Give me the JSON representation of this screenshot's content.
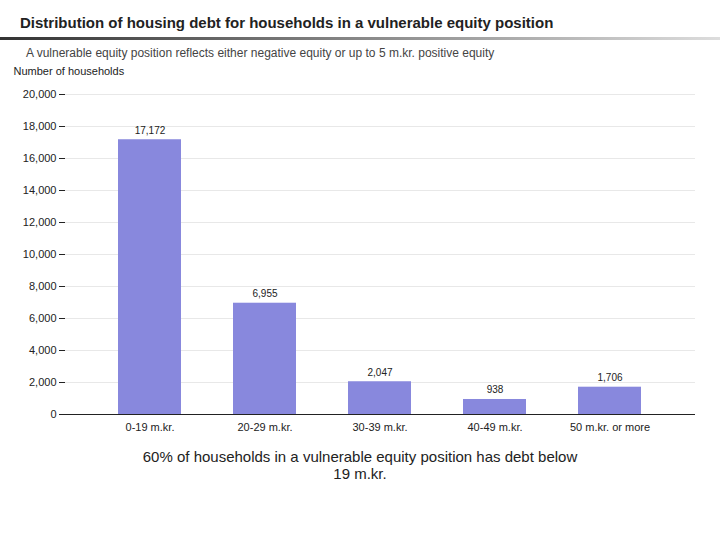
{
  "chart_data": {
    "type": "bar",
    "title": "Distribution of housing debt for households in a vulnerable equity position",
    "subtitle": "A vulnerable equity position reflects either negative equity or up to 5 m.kr. positive equity",
    "ylabel": "Number of households",
    "categories": [
      "0-19 m.kr.",
      "20-29 m.kr.",
      "30-39 m.kr.",
      "40-49 m.kr.",
      "50 m.kr. or more"
    ],
    "values": [
      17172,
      6955,
      2047,
      938,
      1706
    ],
    "data_labels": true,
    "value_labels": [
      "17,172",
      "6,955",
      "2,047",
      "938",
      "1,706"
    ],
    "color": "#8888dd",
    "ylim": [
      0,
      20000
    ],
    "yticks": [
      0,
      {
        "value": 2000,
        "label": "2,000"
      },
      {
        "value": 4000,
        "label": "4,000"
      },
      {
        "value": 6000,
        "label": "6,000"
      },
      {
        "value": 8000,
        "label": "8,000"
      },
      {
        "value": 10000,
        "label": "10,000"
      },
      {
        "value": 12000,
        "label": "12,000"
      },
      {
        "value": 14000,
        "label": "14,000"
      },
      {
        "value": 16000,
        "label": "16,000"
      },
      {
        "value": 18000,
        "label": "18,000"
      },
      {
        "value": 20000,
        "label": "20,000"
      }
    ],
    "grid": true,
    "annotation": "60% of households in a vulnerable equity position has debt below\n19 m.kr."
  }
}
